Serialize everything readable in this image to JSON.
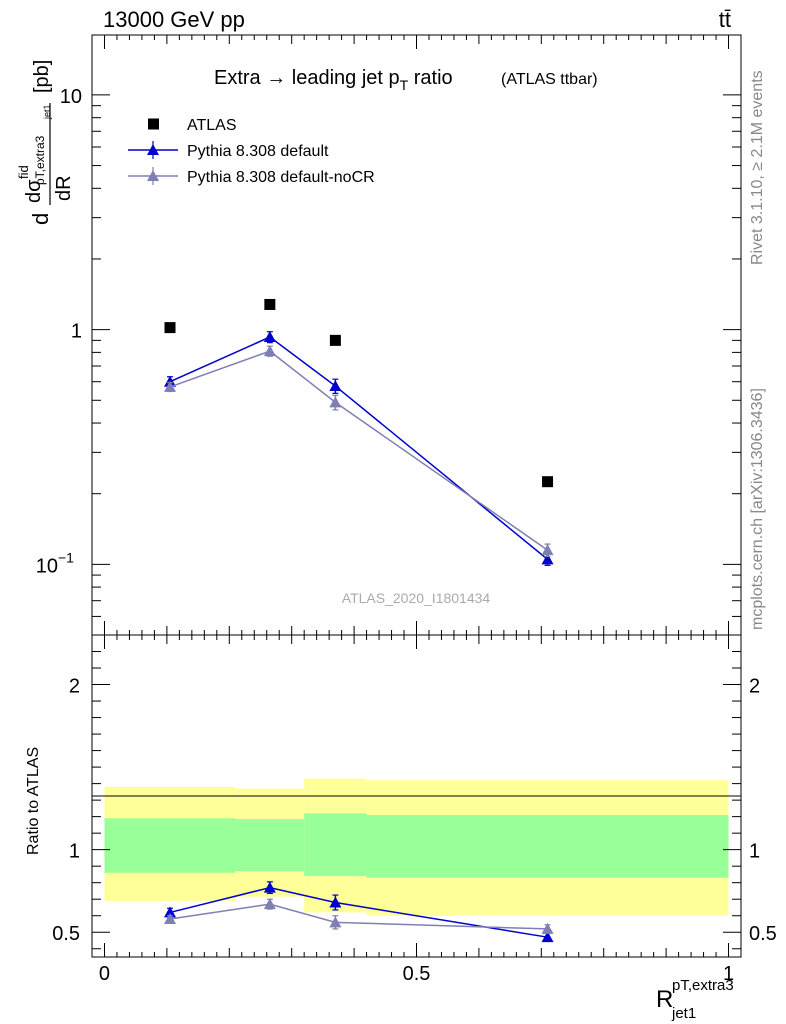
{
  "header": {
    "left": "13000 GeV pp",
    "right": "tt̄"
  },
  "side": {
    "rivet": "Rivet 3.1.10, ≥ 2.1M events",
    "mcplots": "mcplots.cern.ch [arXiv:1306.3436]"
  },
  "chart_data": {
    "type": "scatter",
    "title_main": "Extra → leading jet p",
    "title_sub": "T",
    "title_tail": " ratio",
    "title_paren": "(ATLAS ttbar)",
    "watermark": "ATLAS_2020_I1801434",
    "ylabel": "dσ/dR [pb]",
    "ylabel_parts": {
      "d1": "d",
      "d2": "dR",
      "sigma": "dσ",
      "fid": "fid",
      "sub": "pT,extra3",
      "subsub": "jet1",
      "unit": "[pb]"
    },
    "xlabel": {
      "main": "R",
      "sup": "pT,extra3",
      "sub": "jet1"
    },
    "ratio_ylabel": "Ratio to ATLAS",
    "xlim": [
      -0.02,
      1.02
    ],
    "ylim_top": [
      0.05,
      18
    ],
    "ylim_ratio": [
      0.35,
      2.3
    ],
    "y_scale_top": "log",
    "x_ticks": [
      0,
      0.5,
      1
    ],
    "x_tick_labels": [
      "0",
      "0.5",
      "1"
    ],
    "y_ticks_top_labels": [
      "10",
      "1",
      "10^-1"
    ],
    "y_ticks_top": [
      10,
      1,
      0.1
    ],
    "y_ticks_ratio": [
      0.5,
      1,
      2
    ],
    "y_ticks_ratio_labels": [
      "0.5",
      "1",
      "2"
    ],
    "legend_position": "top-left",
    "series": [
      {
        "name": "ATLAS",
        "color": "#000000",
        "marker": "square",
        "x": [
          0.105,
          0.265,
          0.37,
          0.71
        ],
        "y": [
          1.02,
          1.28,
          0.9,
          0.225
        ]
      },
      {
        "name": "Pythia 8.308 default",
        "color": "#0000cc",
        "marker": "triangle",
        "x": [
          0.105,
          0.265,
          0.37,
          0.71
        ],
        "y": [
          0.6,
          0.93,
          0.575,
          0.105
        ],
        "yerr": [
          0.03,
          0.05,
          0.04,
          0.006
        ],
        "ratio": [
          0.62,
          0.77,
          0.68,
          0.47
        ],
        "ratio_err": [
          0.025,
          0.035,
          0.045,
          0.025
        ]
      },
      {
        "name": "Pythia 8.308 default-noCR",
        "color": "#7f7fb3",
        "marker": "triangle",
        "x": [
          0.105,
          0.265,
          0.37,
          0.71
        ],
        "y": [
          0.57,
          0.81,
          0.49,
          0.115
        ],
        "yerr": [
          0.025,
          0.04,
          0.035,
          0.007
        ],
        "ratio": [
          0.58,
          0.67,
          0.56,
          0.52
        ],
        "ratio_err": [
          0.02,
          0.03,
          0.04,
          0.025
        ]
      }
    ],
    "ratio_bands": [
      {
        "x0": 0.0,
        "x1": 0.21,
        "yellow": [
          0.69,
          1.38
        ],
        "green": [
          0.86,
          1.19
        ]
      },
      {
        "x0": 0.21,
        "x1": 0.32,
        "yellow": [
          0.715,
          1.37
        ],
        "green": [
          0.87,
          1.185
        ]
      },
      {
        "x0": 0.32,
        "x1": 0.42,
        "yellow": [
          0.62,
          1.43
        ],
        "green": [
          0.84,
          1.22
        ]
      },
      {
        "x0": 0.42,
        "x1": 1.0,
        "yellow": [
          0.6,
          1.42
        ],
        "green": [
          0.83,
          1.21
        ]
      }
    ]
  }
}
